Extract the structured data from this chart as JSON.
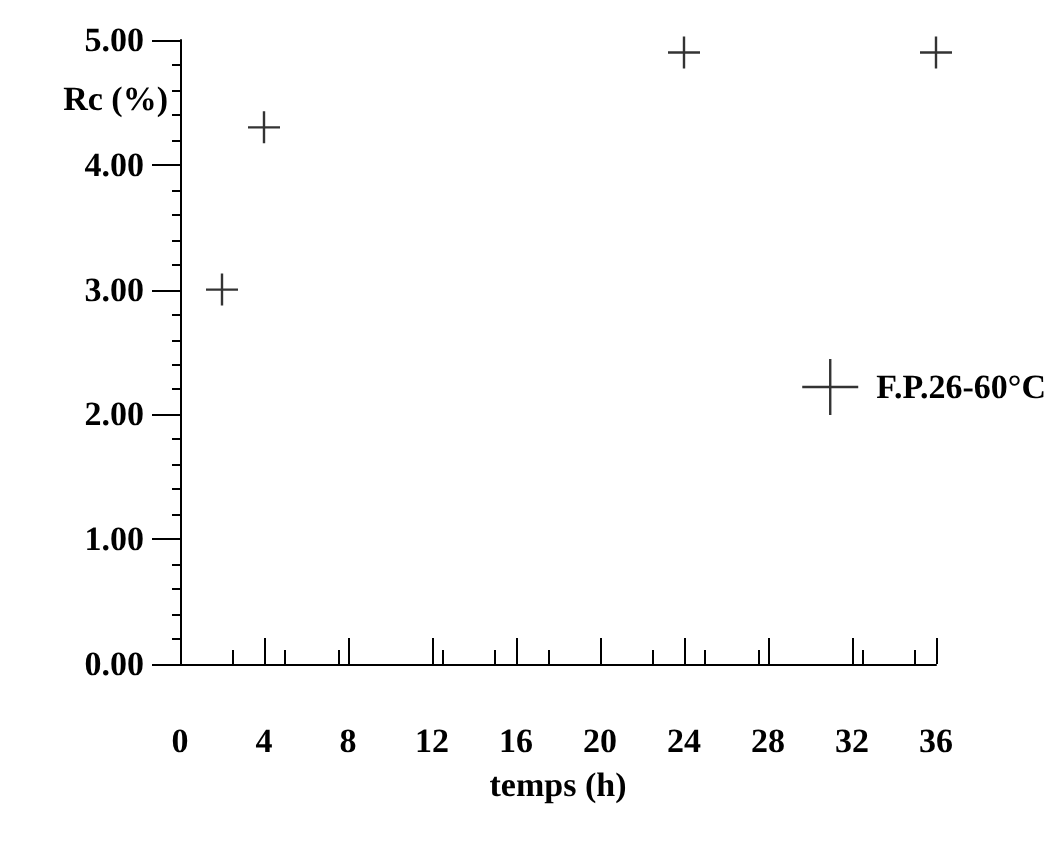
{
  "chart_data": {
    "type": "scatter",
    "xlabel": "temps (h)",
    "ylabel": "Rc (%)",
    "x": [
      2,
      4,
      24,
      36
    ],
    "series": [
      {
        "name": "F.P.26-60°C",
        "color": "#000000",
        "values": [
          3.0,
          4.3,
          4.9,
          4.9
        ]
      }
    ],
    "xlim": [
      0,
      36
    ],
    "xticks": [
      0,
      4,
      8,
      12,
      16,
      20,
      24,
      28,
      32,
      36
    ],
    "ylim": [
      0,
      5
    ],
    "yticks": [
      {
        "value": 0,
        "label": "0.00"
      },
      {
        "value": 1,
        "label": "1.00"
      },
      {
        "value": 2,
        "label": "2.00"
      },
      {
        "value": 3,
        "label": "3.00"
      },
      {
        "value": 4,
        "label": "4.00"
      },
      {
        "value": 5,
        "label": "5.00"
      }
    ],
    "grid": false,
    "legend": "right",
    "marker": "cross"
  }
}
